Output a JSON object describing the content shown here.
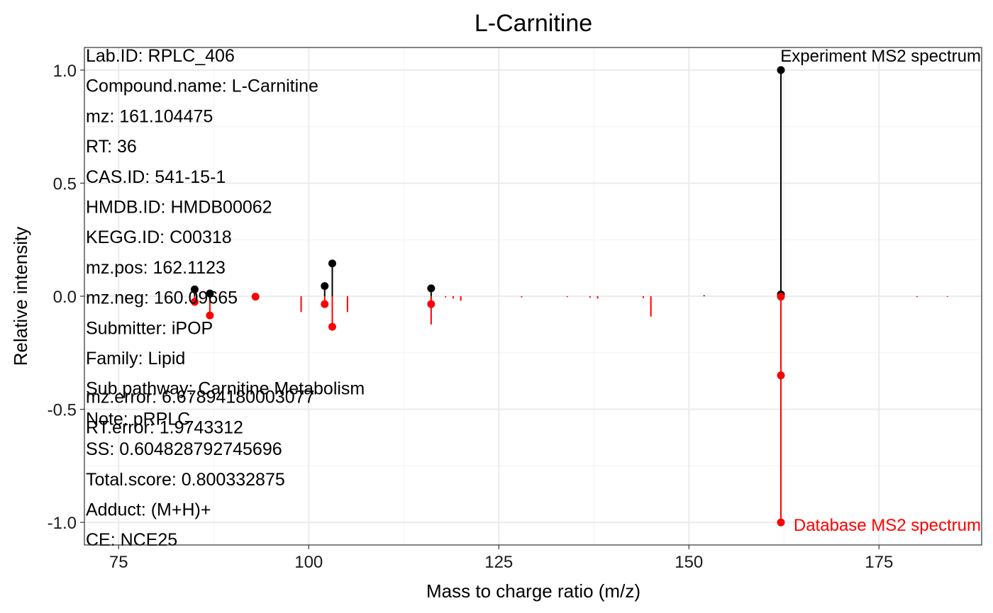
{
  "chart_data": {
    "type": "mirror-spectrum",
    "title": "L-Carnitine",
    "xlabel": "Mass to charge ratio (m/z)",
    "ylabel": "Relative intensity",
    "xlim": [
      70.5,
      188.5
    ],
    "ylim": [
      -1.1,
      1.1
    ],
    "x_ticks": [
      75,
      100,
      125,
      150,
      175
    ],
    "y_ticks": [
      1.0,
      0.5,
      0.0,
      -0.5,
      -1.0
    ],
    "y_tick_labels": [
      "1.0",
      "0.5",
      "0.0",
      "-0.5",
      "-1.0"
    ],
    "grid": true,
    "experiment_label": "Experiment MS2 spectrum",
    "database_label": "Database MS2 spectrum",
    "experiment_color": "#000000",
    "database_color": "#ff0000",
    "experiment_peaks": [
      {
        "mz": 85.0,
        "intensity": 0.03,
        "matched": true
      },
      {
        "mz": 87.0,
        "intensity": 0.012,
        "matched": true
      },
      {
        "mz": 102.1,
        "intensity": 0.045,
        "matched": true
      },
      {
        "mz": 103.1,
        "intensity": 0.145,
        "matched": true
      },
      {
        "mz": 116.1,
        "intensity": 0.035,
        "matched": true
      },
      {
        "mz": 152.0,
        "intensity": 0.004,
        "matched": false
      },
      {
        "mz": 162.1,
        "intensity": 1.0,
        "matched": true
      },
      {
        "mz": 162.1,
        "intensity": 0.008,
        "matched": true
      }
    ],
    "database_peaks": [
      {
        "mz": 76.0,
        "intensity": -0.02,
        "matched": false
      },
      {
        "mz": 85.0,
        "intensity": -0.025,
        "matched": true
      },
      {
        "mz": 87.0,
        "intensity": -0.085,
        "matched": true
      },
      {
        "mz": 93.0,
        "intensity": -0.002,
        "matched": true
      },
      {
        "mz": 99.0,
        "intensity": -0.07,
        "matched": false
      },
      {
        "mz": 102.1,
        "intensity": -0.035,
        "matched": true
      },
      {
        "mz": 103.1,
        "intensity": -0.135,
        "matched": true
      },
      {
        "mz": 105.1,
        "intensity": -0.07,
        "matched": false
      },
      {
        "mz": 116.1,
        "intensity": -0.125,
        "matched": false
      },
      {
        "mz": 116.1,
        "intensity": -0.035,
        "matched": true
      },
      {
        "mz": 118.0,
        "intensity": -0.005,
        "matched": false
      },
      {
        "mz": 119.0,
        "intensity": -0.01,
        "matched": false
      },
      {
        "mz": 120.0,
        "intensity": -0.02,
        "matched": false
      },
      {
        "mz": 128.0,
        "intensity": -0.005,
        "matched": false
      },
      {
        "mz": 134.0,
        "intensity": -0.004,
        "matched": false
      },
      {
        "mz": 137.0,
        "intensity": -0.006,
        "matched": false
      },
      {
        "mz": 138.0,
        "intensity": -0.01,
        "matched": false
      },
      {
        "mz": 144.0,
        "intensity": -0.008,
        "matched": false
      },
      {
        "mz": 145.0,
        "intensity": -0.09,
        "matched": false
      },
      {
        "mz": 162.1,
        "intensity": -1.0,
        "matched": true
      },
      {
        "mz": 162.1,
        "intensity": -0.35,
        "matched": true
      },
      {
        "mz": 162.1,
        "intensity": -0.002,
        "matched": true
      },
      {
        "mz": 180.0,
        "intensity": -0.004,
        "matched": false
      },
      {
        "mz": 184.0,
        "intensity": -0.003,
        "matched": false
      }
    ]
  },
  "info_lines": [
    "Lab.ID: RPLC_406",
    "Compound.name: L-Carnitine",
    "mz: 161.104475",
    "RT: 36",
    "CAS.ID: 541-15-1",
    "HMDB.ID: HMDB00062",
    "KEGG.ID: C00318",
    "mz.pos: 162.1123",
    "mz.neg: 160.09665",
    "Submitter: iPOP",
    "Family: Lipid",
    "Sub.pathway: Carnitine Metabolism",
    "Note: pRPLC",
    "SS: 0.604828792745696",
    "Total.score: 0.800332875",
    "Adduct: (M+H)+",
    "CE: NCE25"
  ],
  "overlap_lines": [
    "mz.error: 6.67894180003077",
    "RT.error: 1.9743312"
  ]
}
